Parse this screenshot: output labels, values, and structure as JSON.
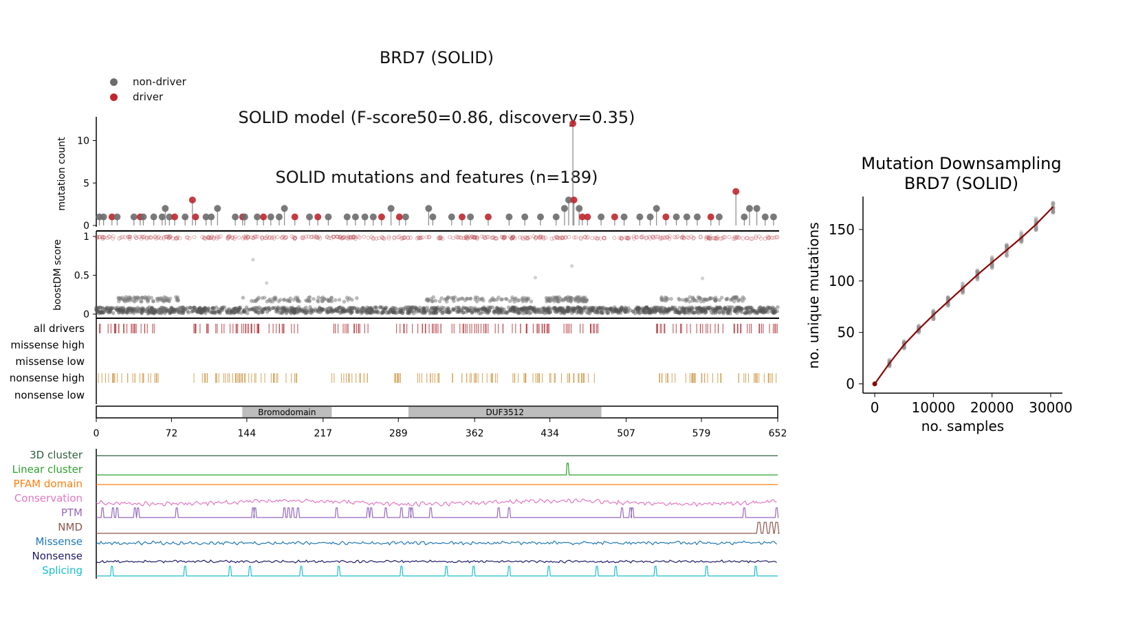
{
  "main_title": {
    "line1": "BRD7 (SOLID)",
    "line2": "SOLID model (F-score50=0.86, discovery=0.35)",
    "line3": "SOLID mutations and features (n=189)"
  },
  "legend": {
    "non_driver": "non-driver",
    "driver": "driver",
    "non_driver_color": "#6b6b6b",
    "driver_color": "#c0272d"
  },
  "chart_data": [
    {
      "type": "scatter",
      "name": "needle-plot",
      "ylabel": "mutation count",
      "ylim": [
        0,
        12.5
      ],
      "yticks": [
        0,
        5,
        10
      ],
      "xlim": [
        0,
        652
      ],
      "mutations": [
        {
          "pos": 3,
          "count": 1,
          "driver": false
        },
        {
          "pos": 7,
          "count": 1,
          "driver": false
        },
        {
          "pos": 15,
          "count": 1,
          "driver": true
        },
        {
          "pos": 20,
          "count": 1,
          "driver": false
        },
        {
          "pos": 36,
          "count": 1,
          "driver": false
        },
        {
          "pos": 42,
          "count": 1,
          "driver": true
        },
        {
          "pos": 45,
          "count": 1,
          "driver": false
        },
        {
          "pos": 55,
          "count": 1,
          "driver": false
        },
        {
          "pos": 63,
          "count": 1,
          "driver": false
        },
        {
          "pos": 66,
          "count": 2,
          "driver": false
        },
        {
          "pos": 70,
          "count": 1,
          "driver": false
        },
        {
          "pos": 75,
          "count": 1,
          "driver": true
        },
        {
          "pos": 85,
          "count": 1,
          "driver": false
        },
        {
          "pos": 92,
          "count": 3,
          "driver": true
        },
        {
          "pos": 95,
          "count": 1,
          "driver": true
        },
        {
          "pos": 105,
          "count": 1,
          "driver": false
        },
        {
          "pos": 110,
          "count": 1,
          "driver": false
        },
        {
          "pos": 116,
          "count": 2,
          "driver": false
        },
        {
          "pos": 133,
          "count": 1,
          "driver": false
        },
        {
          "pos": 140,
          "count": 1,
          "driver": true
        },
        {
          "pos": 142,
          "count": 1,
          "driver": false
        },
        {
          "pos": 154,
          "count": 1,
          "driver": false
        },
        {
          "pos": 160,
          "count": 1,
          "driver": true
        },
        {
          "pos": 167,
          "count": 1,
          "driver": false
        },
        {
          "pos": 175,
          "count": 1,
          "driver": false
        },
        {
          "pos": 180,
          "count": 2,
          "driver": false
        },
        {
          "pos": 190,
          "count": 1,
          "driver": true
        },
        {
          "pos": 204,
          "count": 1,
          "driver": false
        },
        {
          "pos": 212,
          "count": 1,
          "driver": true
        },
        {
          "pos": 222,
          "count": 1,
          "driver": false
        },
        {
          "pos": 240,
          "count": 1,
          "driver": false
        },
        {
          "pos": 248,
          "count": 1,
          "driver": false
        },
        {
          "pos": 257,
          "count": 1,
          "driver": false
        },
        {
          "pos": 265,
          "count": 1,
          "driver": false
        },
        {
          "pos": 273,
          "count": 1,
          "driver": true
        },
        {
          "pos": 282,
          "count": 2,
          "driver": false
        },
        {
          "pos": 290,
          "count": 1,
          "driver": true
        },
        {
          "pos": 296,
          "count": 1,
          "driver": false
        },
        {
          "pos": 318,
          "count": 2,
          "driver": false
        },
        {
          "pos": 322,
          "count": 1,
          "driver": false
        },
        {
          "pos": 340,
          "count": 1,
          "driver": false
        },
        {
          "pos": 350,
          "count": 1,
          "driver": true
        },
        {
          "pos": 358,
          "count": 1,
          "driver": false
        },
        {
          "pos": 375,
          "count": 1,
          "driver": true
        },
        {
          "pos": 395,
          "count": 1,
          "driver": false
        },
        {
          "pos": 410,
          "count": 1,
          "driver": false
        },
        {
          "pos": 425,
          "count": 1,
          "driver": false
        },
        {
          "pos": 440,
          "count": 1,
          "driver": false
        },
        {
          "pos": 448,
          "count": 2,
          "driver": false
        },
        {
          "pos": 452,
          "count": 3,
          "driver": false
        },
        {
          "pos": 456,
          "count": 12,
          "driver": true
        },
        {
          "pos": 457,
          "count": 3,
          "driver": true
        },
        {
          "pos": 462,
          "count": 2,
          "driver": false
        },
        {
          "pos": 465,
          "count": 1,
          "driver": true
        },
        {
          "pos": 470,
          "count": 1,
          "driver": true
        },
        {
          "pos": 483,
          "count": 1,
          "driver": false
        },
        {
          "pos": 496,
          "count": 1,
          "driver": true
        },
        {
          "pos": 505,
          "count": 1,
          "driver": false
        },
        {
          "pos": 520,
          "count": 1,
          "driver": false
        },
        {
          "pos": 530,
          "count": 1,
          "driver": false
        },
        {
          "pos": 536,
          "count": 2,
          "driver": false
        },
        {
          "pos": 545,
          "count": 1,
          "driver": true
        },
        {
          "pos": 555,
          "count": 1,
          "driver": false
        },
        {
          "pos": 565,
          "count": 1,
          "driver": false
        },
        {
          "pos": 575,
          "count": 1,
          "driver": false
        },
        {
          "pos": 588,
          "count": 1,
          "driver": true
        },
        {
          "pos": 596,
          "count": 1,
          "driver": false
        },
        {
          "pos": 612,
          "count": 4,
          "driver": true
        },
        {
          "pos": 620,
          "count": 1,
          "driver": false
        },
        {
          "pos": 625,
          "count": 2,
          "driver": false
        },
        {
          "pos": 632,
          "count": 2,
          "driver": false
        },
        {
          "pos": 640,
          "count": 1,
          "driver": false
        },
        {
          "pos": 648,
          "count": 1,
          "driver": false
        }
      ]
    },
    {
      "type": "scatter",
      "name": "boostdm-score",
      "ylabel": "boostDM score",
      "ylim": [
        0,
        1
      ],
      "yticks": [
        0,
        0.5,
        1
      ],
      "yticklabels": [
        "0",
        "0.5",
        "1"
      ],
      "xlim": [
        0,
        652
      ],
      "outlier_points": [
        {
          "pos": 150,
          "score": 0.7
        },
        {
          "pos": 163,
          "score": 0.4
        },
        {
          "pos": 420,
          "score": 0.47
        },
        {
          "pos": 580,
          "score": 0.46
        },
        {
          "pos": 455,
          "score": 0.62
        }
      ]
    },
    {
      "type": "table",
      "name": "consequence-tracks",
      "tracks": [
        "all drivers",
        "missense high",
        "missense low",
        "nonsense high",
        "nonsense low"
      ],
      "track_colors": [
        "#b9474d",
        "#ffffff",
        "#ffffff",
        "#d4a35a",
        "#ffffff"
      ]
    },
    {
      "type": "bar",
      "name": "protein-domains",
      "xlim": [
        0,
        652
      ],
      "xticks": [
        0,
        72,
        144,
        217,
        289,
        362,
        434,
        507,
        579,
        652
      ],
      "domains": [
        {
          "label": "Bromodomain",
          "start": 140,
          "end": 225
        },
        {
          "label": "DUF3512",
          "start": 299,
          "end": 483
        }
      ]
    },
    {
      "type": "line",
      "name": "feature-tracks",
      "xlim": [
        0,
        652
      ],
      "tracks": [
        {
          "label": "3D cluster",
          "color": "#2e5e3a"
        },
        {
          "label": "Linear cluster",
          "color": "#2ca02c",
          "peaks": [
            451
          ]
        },
        {
          "label": "PFAM domain",
          "color": "#ff7f0e"
        },
        {
          "label": "Conservation",
          "color": "#e377c2"
        },
        {
          "label": "PTM",
          "color": "#9467bd",
          "peaks": [
            6,
            16,
            20,
            37,
            40,
            77,
            150,
            152,
            180,
            184,
            188,
            193,
            230,
            260,
            263,
            277,
            292,
            300,
            302,
            320,
            385,
            395,
            503,
            511,
            513,
            620,
            651
          ]
        },
        {
          "label": "NMD",
          "color": "#8c564b",
          "peaks": [
            634,
            640,
            646,
            651
          ]
        },
        {
          "label": "Missense",
          "color": "#1f77b4"
        },
        {
          "label": "Nonsense",
          "color": "#1a1a66"
        },
        {
          "label": "Splicing",
          "color": "#17becf",
          "peaks": [
            15,
            85,
            128,
            147,
            196,
            232,
            292,
            335,
            361,
            395,
            433,
            479,
            497,
            535,
            584,
            631
          ]
        }
      ]
    },
    {
      "type": "scatter",
      "name": "downsampling",
      "title": "Mutation Downsampling",
      "subtitle": "BRD7 (SOLID)",
      "xlabel": "no. samples",
      "ylabel": "no. unique mutations",
      "xlim": [
        -2000,
        32000
      ],
      "ylim": [
        -9,
        182
      ],
      "xticks": [
        0,
        10000,
        20000,
        30000
      ],
      "yticks": [
        0,
        50,
        100,
        150
      ],
      "curve_x": [
        0,
        2500,
        5000,
        7500,
        10000,
        12500,
        15000,
        17500,
        20000,
        22500,
        25000,
        27500,
        30400
      ],
      "curve_y": [
        0,
        20,
        38,
        53,
        67,
        80,
        93,
        106,
        118,
        130,
        142,
        155,
        172
      ]
    }
  ]
}
